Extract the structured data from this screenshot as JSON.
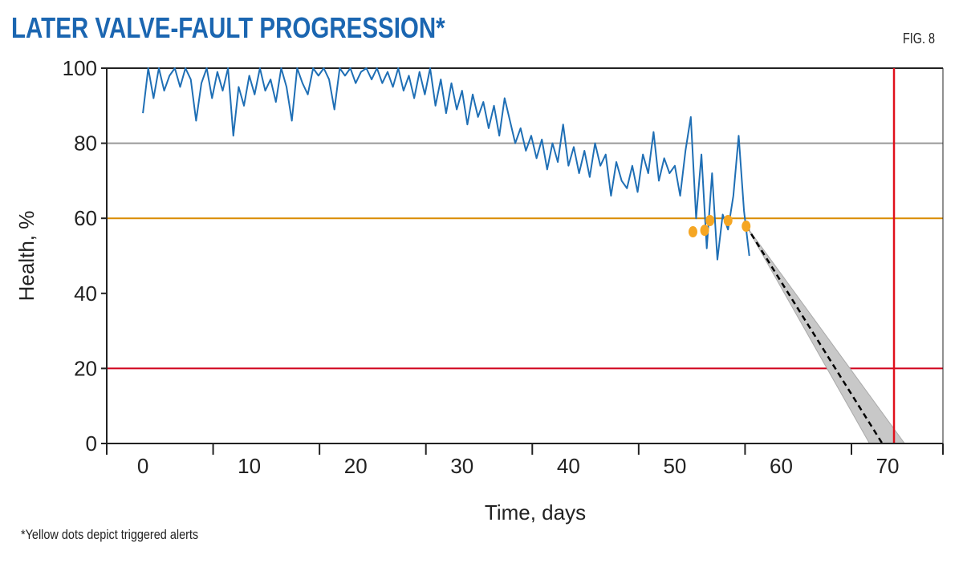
{
  "chart_data": {
    "type": "line",
    "title": "LATER VALVE-FAULT PROGRESSION*",
    "figure_label": "FIG. 8",
    "footnote": "*Yellow dots depict triggered alerts",
    "xlabel": "Time, days",
    "ylabel": "Health, %",
    "xlim": [
      -3.4,
      75.2
    ],
    "ylim": [
      0,
      100
    ],
    "xticks": [
      0,
      10,
      20,
      30,
      40,
      50,
      60,
      70
    ],
    "yticks": [
      0,
      20,
      40,
      60,
      80,
      100
    ],
    "grid": "horizontal",
    "series": [
      {
        "color": "#1f6fb5",
        "x_start": 0,
        "x_step": 0.5,
        "values": [
          88,
          100,
          92,
          100,
          94,
          98,
          100,
          95,
          100,
          97,
          86,
          96,
          100,
          92,
          99,
          94,
          100,
          82,
          95,
          90,
          98,
          93,
          100,
          94,
          97,
          91,
          100,
          95,
          86,
          100,
          96,
          93,
          100,
          98,
          100,
          97,
          89,
          100,
          98,
          100,
          96,
          99,
          100,
          97,
          100,
          96,
          99,
          95,
          100,
          94,
          98,
          92,
          99,
          93,
          100,
          90,
          97,
          88,
          96,
          89,
          94,
          85,
          93,
          87,
          91,
          84,
          90,
          82,
          92,
          86,
          80,
          84,
          78,
          82,
          76,
          81,
          73,
          80,
          75,
          85,
          74,
          79,
          72,
          78,
          71,
          80,
          74,
          77,
          66,
          75,
          70,
          68,
          74,
          67,
          77,
          72,
          83,
          70,
          76,
          72,
          74,
          66,
          78,
          87,
          60,
          77,
          52,
          72,
          49,
          61,
          57,
          66,
          82,
          62,
          50
        ]
      }
    ],
    "alerts": {
      "color": "#f5a623",
      "points": [
        [
          51.7,
          56.4
        ],
        [
          52.8,
          56.8
        ],
        [
          53.3,
          59.4
        ],
        [
          55.0,
          59.4
        ],
        [
          56.7,
          57.9
        ]
      ]
    },
    "forecast": {
      "start": [
        56.7,
        58
      ],
      "end": [
        69.5,
        0
      ],
      "band_end": [
        68.3,
        71.6
      ],
      "color": "#000000",
      "band_color": "#c8c8c8"
    },
    "thresholds": [
      {
        "y": 80,
        "color": "#999999"
      },
      {
        "y": 60,
        "color": "#d98b00"
      },
      {
        "y": 20,
        "color": "#d0021b"
      }
    ],
    "vertical_marker": {
      "x": 70.6,
      "color": "#e0101b"
    }
  }
}
